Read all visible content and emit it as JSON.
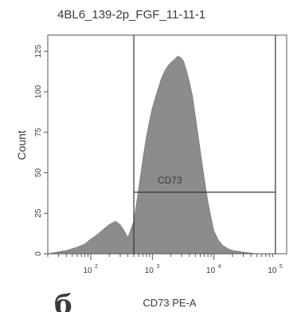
{
  "panel_label": "б",
  "chart_data": {
    "type": "area",
    "title": "4BL6_139-2p_FGF_11-11-1",
    "xlabel": "CD73 PE-A",
    "ylabel": "Count",
    "x_scale": "log",
    "xlim": [
      20,
      100000
    ],
    "ylim": [
      0,
      135
    ],
    "y_ticks": [
      0,
      25,
      50,
      75,
      100,
      125
    ],
    "x_ticks": [
      {
        "value": 100,
        "label": "10",
        "exp": "2"
      },
      {
        "value": 1000,
        "label": "10",
        "exp": "3"
      },
      {
        "value": 10000,
        "label": "10",
        "exp": "4"
      },
      {
        "value": 100000,
        "label": "10",
        "exp": "5"
      }
    ],
    "series": [
      {
        "color": "#8c8c8c",
        "x": [
          20,
          40,
          60,
          80,
          100,
          130,
          160,
          200,
          250,
          300,
          350,
          400,
          500,
          600,
          700,
          800,
          900,
          1000,
          1200,
          1400,
          1600,
          1800,
          2000,
          2300,
          2600,
          2900,
          3200,
          3600,
          4000,
          4500,
          5000,
          5600,
          6300,
          7000,
          8000,
          9000,
          10000,
          12000,
          14000,
          17000,
          20000,
          30000,
          50000,
          100000
        ],
        "y": [
          0,
          2,
          4,
          6,
          9,
          12,
          15,
          18,
          20,
          18,
          14,
          10,
          20,
          40,
          58,
          72,
          82,
          90,
          100,
          108,
          113,
          116,
          118,
          120,
          122,
          121,
          119,
          113,
          106,
          97,
          85,
          72,
          58,
          46,
          32,
          22,
          14,
          8,
          5,
          3,
          2,
          1,
          0,
          0
        ]
      }
    ],
    "gate": {
      "label": "CD73",
      "x_start": 500,
      "x_end": 100000,
      "y": 38
    }
  }
}
